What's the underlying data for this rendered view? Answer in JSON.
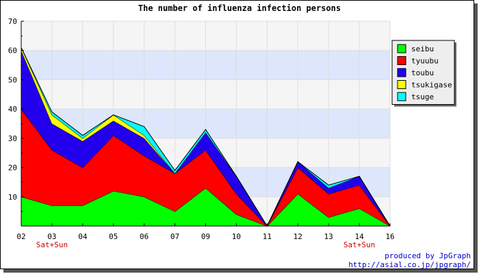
{
  "chart_data": {
    "type": "area",
    "stacked": true,
    "title": "The number of influenza infection persons",
    "xlabel": "",
    "ylabel": "",
    "categories": [
      "02",
      "03",
      "04",
      "05",
      "06",
      "07",
      "09",
      "10",
      "11",
      "12",
      "13",
      "14",
      "16"
    ],
    "category_notes": [
      "",
      "Sat+Sun",
      "",
      "",
      "",
      "",
      "",
      "",
      "",
      "",
      "",
      "Sat+Sun",
      ""
    ],
    "note_color": "#cc0000",
    "yticks": [
      10,
      20,
      30,
      40,
      50,
      60,
      70
    ],
    "ylim": [
      0,
      70
    ],
    "grid": true,
    "band_colors": [
      "#f5f5f5",
      "#dde6fb"
    ],
    "legend_position": "right",
    "series": [
      {
        "name": "seibu",
        "color": "#00ff00",
        "values": [
          10,
          7,
          7,
          12,
          10,
          5,
          13,
          4,
          0,
          11,
          3,
          6,
          0
        ]
      },
      {
        "name": "tyuubu",
        "color": "#ff0000",
        "values": [
          30,
          19,
          13,
          19,
          14,
          13,
          13,
          7,
          0,
          9,
          8,
          8,
          0
        ]
      },
      {
        "name": "toubu",
        "color": "#2200ee",
        "values": [
          20,
          9,
          9,
          5,
          6,
          0,
          6,
          6,
          0,
          2,
          2,
          3,
          0
        ]
      },
      {
        "name": "tsukigase",
        "color": "#ffff00",
        "values": [
          1,
          3,
          1,
          2,
          1,
          0,
          0,
          0,
          0,
          0,
          0,
          0,
          0
        ]
      },
      {
        "name": "tsuge",
        "color": "#00ffff",
        "values": [
          0,
          1,
          1,
          0,
          3,
          1,
          1,
          0,
          0,
          0,
          1,
          0,
          0
        ]
      }
    ]
  },
  "footer": {
    "line1": "produced by JpGraph",
    "line2": "http://asial.co.jp/jpgraph/"
  }
}
